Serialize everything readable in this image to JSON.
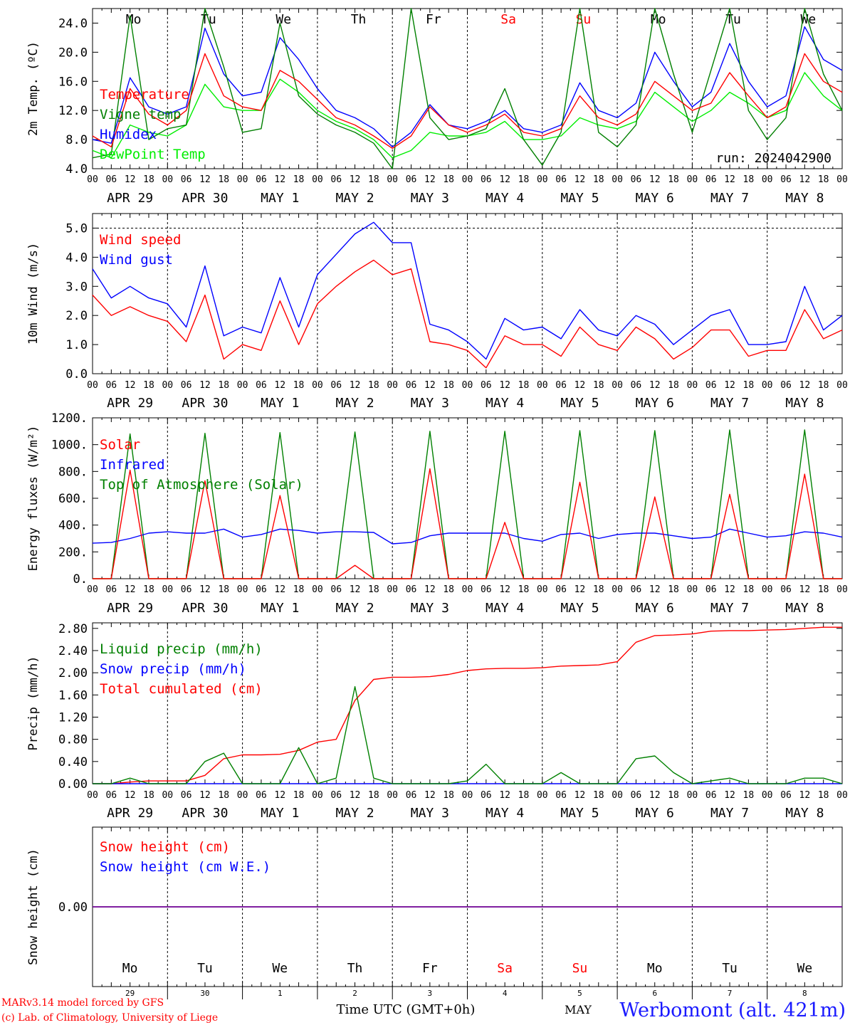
{
  "days": [
    {
      "abbr": "Mo",
      "date": "APR 29",
      "num": "29",
      "weekend": false
    },
    {
      "abbr": "Tu",
      "date": "APR 30",
      "num": "30",
      "weekend": false
    },
    {
      "abbr": "We",
      "date": "MAY  1",
      "num": "1",
      "weekend": false
    },
    {
      "abbr": "Th",
      "date": "MAY  2",
      "num": "2",
      "weekend": false
    },
    {
      "abbr": "Fr",
      "date": "MAY  3",
      "num": "3",
      "weekend": false
    },
    {
      "abbr": "Sa",
      "date": "MAY  4",
      "num": "4",
      "weekend": true
    },
    {
      "abbr": "Su",
      "date": "MAY  5",
      "num": "5",
      "weekend": true
    },
    {
      "abbr": "Mo",
      "date": "MAY  6",
      "num": "6",
      "weekend": false
    },
    {
      "abbr": "Tu",
      "date": "MAY  7",
      "num": "7",
      "weekend": false
    },
    {
      "abbr": "We",
      "date": "MAY  8",
      "num": "8",
      "weekend": false
    }
  ],
  "hour_ticks": [
    "00",
    "06",
    "12",
    "18"
  ],
  "run_label": "run: 2024042900",
  "footer": {
    "credit_line1": "MARv3.14 model forced by GFS",
    "credit_line2": "(c) Lab. of Climatology, University of Liege",
    "xlabel": "Time UTC (GMT+0h)",
    "month_label": "MAY",
    "station": "Werbomont (alt. 421m)"
  },
  "colors": {
    "red": "#ff0000",
    "green": "#008000",
    "blue": "#0000ff",
    "lightgreen": "#00ee00",
    "purple": "#800080"
  },
  "chart_data": [
    {
      "type": "line",
      "ylabel": "2m Temp. (ºC)",
      "ylim": [
        4,
        26
      ],
      "yticks": [
        "24.0",
        "20.0",
        "16.0",
        "12.0",
        "8.0",
        "4.0"
      ],
      "ytick_values": [
        24,
        20,
        16,
        12,
        8,
        4
      ],
      "x_hours": [
        0,
        6,
        12,
        18,
        24,
        30,
        36,
        42,
        48,
        54,
        60,
        66,
        72,
        78,
        84,
        90,
        96,
        102,
        108,
        114,
        120,
        126,
        132,
        138,
        144,
        150,
        156,
        162,
        168,
        174,
        180,
        186,
        192,
        198,
        204,
        210,
        216,
        222,
        228,
        234,
        240
      ],
      "series": [
        {
          "name": "Temperature",
          "color": "#ff0000",
          "values": [
            8.5,
            7.0,
            15.0,
            11.5,
            10.0,
            12.0,
            19.8,
            14.0,
            12.5,
            12.0,
            17.5,
            16.0,
            13.5,
            11.0,
            10.0,
            8.5,
            6.8,
            8.5,
            12.5,
            10.0,
            9.0,
            10.0,
            11.5,
            9.0,
            8.5,
            9.5,
            14.0,
            11.0,
            10.0,
            11.5,
            16.0,
            14.0,
            12.0,
            13.0,
            17.2,
            14.0,
            11.0,
            12.5,
            19.8,
            16.0,
            14.5
          ]
        },
        {
          "name": "Vigne temp",
          "color": "#008000",
          "values": [
            5.5,
            6.0,
            25.0,
            8.0,
            9.5,
            10.0,
            26.0,
            18.0,
            9.0,
            9.5,
            24.0,
            14.0,
            11.5,
            10.0,
            9.0,
            7.5,
            4.0,
            26.0,
            11.0,
            8.0,
            8.5,
            9.5,
            15.0,
            8.0,
            4.5,
            9.0,
            26.0,
            9.0,
            7.0,
            10.0,
            26.0,
            17.0,
            9.0,
            17.5,
            26.0,
            12.0,
            8.0,
            11.0,
            26.0,
            17.0,
            12.0
          ]
        },
        {
          "name": "Humidex",
          "color": "#0000ff",
          "values": [
            8.0,
            7.5,
            16.5,
            12.5,
            11.5,
            12.5,
            23.3,
            17.0,
            14.0,
            14.5,
            22.0,
            19.0,
            15.0,
            12.0,
            11.0,
            9.5,
            7.0,
            9.0,
            12.8,
            10.0,
            9.5,
            10.5,
            12.0,
            9.5,
            9.0,
            10.0,
            15.8,
            12.0,
            11.0,
            13.0,
            20.0,
            16.0,
            12.5,
            14.5,
            21.2,
            16.0,
            12.5,
            14.0,
            23.5,
            19.0,
            17.5
          ]
        },
        {
          "name": "DewPoint Temp",
          "color": "#00ee00",
          "values": [
            6.5,
            5.5,
            10.0,
            9.0,
            8.5,
            10.0,
            15.6,
            12.5,
            12.0,
            12.0,
            16.3,
            14.5,
            12.0,
            10.5,
            9.5,
            8.0,
            5.5,
            6.5,
            9.0,
            8.5,
            8.5,
            9.0,
            10.5,
            8.0,
            8.0,
            8.5,
            11.0,
            10.0,
            9.5,
            10.5,
            14.5,
            12.5,
            10.5,
            12.0,
            14.5,
            13.0,
            11.0,
            12.0,
            17.2,
            14.0,
            12.0
          ]
        }
      ]
    },
    {
      "type": "line",
      "ylabel": "10m Wind (m/s)",
      "ylim": [
        0,
        5.5
      ],
      "yticks": [
        "5.0",
        "4.0",
        "3.0",
        "2.0",
        "1.0",
        "0.0"
      ],
      "ytick_values": [
        5,
        4,
        3,
        2,
        1,
        0
      ],
      "dashed_reference": 5.0,
      "x_hours": [
        0,
        6,
        12,
        18,
        24,
        30,
        36,
        42,
        48,
        54,
        60,
        66,
        72,
        78,
        84,
        90,
        96,
        102,
        108,
        114,
        120,
        126,
        132,
        138,
        144,
        150,
        156,
        162,
        168,
        174,
        180,
        186,
        192,
        198,
        204,
        210,
        216,
        222,
        228,
        234,
        240
      ],
      "series": [
        {
          "name": "Wind speed",
          "color": "#ff0000",
          "values": [
            2.7,
            2.0,
            2.3,
            2.0,
            1.8,
            1.1,
            2.7,
            0.5,
            1.0,
            0.8,
            2.5,
            1.0,
            2.4,
            3.0,
            3.5,
            3.9,
            3.4,
            3.6,
            1.1,
            1.0,
            0.8,
            0.2,
            1.3,
            1.0,
            1.0,
            0.6,
            1.6,
            1.0,
            0.8,
            1.6,
            1.2,
            0.5,
            0.9,
            1.5,
            1.5,
            0.6,
            0.8,
            0.8,
            2.2,
            1.2,
            1.5
          ]
        },
        {
          "name": "Wind gust",
          "color": "#0000ff",
          "values": [
            3.6,
            2.6,
            3.0,
            2.6,
            2.4,
            1.6,
            3.7,
            1.3,
            1.6,
            1.4,
            3.3,
            1.6,
            3.4,
            4.1,
            4.8,
            5.2,
            4.5,
            4.5,
            1.7,
            1.5,
            1.1,
            0.5,
            1.9,
            1.5,
            1.6,
            1.2,
            2.2,
            1.5,
            1.3,
            2.0,
            1.7,
            1.0,
            1.5,
            2.0,
            2.2,
            1.0,
            1.0,
            1.1,
            3.0,
            1.5,
            2.0
          ]
        }
      ]
    },
    {
      "type": "line",
      "ylabel": "Energy fluxes (W/m²)",
      "ylim": [
        0,
        1200
      ],
      "yticks": [
        "1200.",
        "1000.",
        "800.",
        "600.",
        "400.",
        "200.",
        "0."
      ],
      "ytick_values": [
        1200,
        1000,
        800,
        600,
        400,
        200,
        0
      ],
      "x_hours": [
        0,
        6,
        12,
        18,
        24,
        30,
        36,
        42,
        48,
        54,
        60,
        66,
        72,
        78,
        84,
        90,
        96,
        102,
        108,
        114,
        120,
        126,
        132,
        138,
        144,
        150,
        156,
        162,
        168,
        174,
        180,
        186,
        192,
        198,
        204,
        210,
        216,
        222,
        228,
        234,
        240
      ],
      "series": [
        {
          "name": "Solar",
          "color": "#ff0000",
          "values": [
            0,
            0,
            810,
            0,
            0,
            0,
            730,
            0,
            0,
            0,
            620,
            0,
            0,
            0,
            100,
            0,
            0,
            0,
            820,
            0,
            0,
            0,
            420,
            0,
            0,
            0,
            720,
            0,
            0,
            0,
            610,
            0,
            0,
            0,
            630,
            0,
            0,
            0,
            780,
            0,
            0
          ]
        },
        {
          "name": "Infrared",
          "color": "#0000ff",
          "values": [
            265,
            270,
            300,
            340,
            350,
            340,
            340,
            370,
            310,
            330,
            370,
            360,
            340,
            350,
            350,
            345,
            260,
            270,
            320,
            340,
            340,
            340,
            340,
            300,
            280,
            330,
            340,
            300,
            330,
            340,
            340,
            320,
            300,
            310,
            370,
            340,
            310,
            320,
            350,
            340,
            310
          ]
        },
        {
          "name": "Top of Atmosphere (Solar)",
          "color": "#008000",
          "values": [
            0,
            0,
            1080,
            0,
            0,
            0,
            1085,
            0,
            0,
            0,
            1090,
            0,
            0,
            0,
            1095,
            0,
            0,
            0,
            1100,
            0,
            0,
            0,
            1100,
            0,
            0,
            0,
            1105,
            0,
            0,
            0,
            1105,
            0,
            0,
            0,
            1110,
            0,
            0,
            0,
            1110,
            0,
            0
          ]
        }
      ]
    },
    {
      "type": "line",
      "ylabel": "Precip (mm/h)",
      "ylim": [
        0,
        2.9
      ],
      "yticks": [
        "2.80",
        "2.40",
        "2.00",
        "1.60",
        "1.20",
        "0.80",
        "0.40",
        "0.00"
      ],
      "ytick_values": [
        2.8,
        2.4,
        2.0,
        1.6,
        1.2,
        0.8,
        0.4,
        0.0
      ],
      "x_hours": [
        0,
        6,
        12,
        18,
        24,
        30,
        36,
        42,
        48,
        54,
        60,
        66,
        72,
        78,
        84,
        90,
        96,
        102,
        108,
        114,
        120,
        126,
        132,
        138,
        144,
        150,
        156,
        162,
        168,
        174,
        180,
        186,
        192,
        198,
        204,
        210,
        216,
        222,
        228,
        234,
        240
      ],
      "series": [
        {
          "name": "Liquid precip (mm/h)",
          "color": "#008000",
          "values": [
            0,
            0,
            0.1,
            0,
            0,
            0,
            0.4,
            0.55,
            0,
            0,
            0,
            0.65,
            0,
            0.1,
            1.75,
            0.1,
            0,
            0,
            0,
            0,
            0.05,
            0.35,
            0,
            0,
            0,
            0.2,
            0,
            0,
            0,
            0.45,
            0.5,
            0.2,
            0,
            0.05,
            0.1,
            0,
            0,
            0,
            0.1,
            0.1,
            0
          ]
        },
        {
          "name": "Snow precip (mm/h)",
          "color": "#0000ff",
          "values": [
            0,
            0,
            0,
            0,
            0,
            0,
            0,
            0,
            0,
            0,
            0,
            0,
            0,
            0,
            0,
            0,
            0,
            0,
            0,
            0,
            0,
            0,
            0,
            0,
            0,
            0,
            0,
            0,
            0,
            0,
            0,
            0,
            0,
            0,
            0,
            0,
            0,
            0,
            0,
            0,
            0
          ]
        },
        {
          "name": "Total cumulated (cm)",
          "color": "#ff0000",
          "values": [
            0,
            0,
            0.03,
            0.05,
            0.05,
            0.05,
            0.15,
            0.45,
            0.52,
            0.52,
            0.53,
            0.6,
            0.75,
            0.8,
            1.5,
            1.88,
            1.92,
            1.92,
            1.93,
            1.97,
            2.04,
            2.07,
            2.08,
            2.08,
            2.09,
            2.12,
            2.13,
            2.14,
            2.2,
            2.55,
            2.67,
            2.68,
            2.7,
            2.75,
            2.76,
            2.76,
            2.77,
            2.78,
            2.8,
            2.82,
            2.82
          ]
        }
      ]
    },
    {
      "type": "line",
      "ylabel": "Snow height (cm)",
      "ylim": [
        -1,
        1
      ],
      "yticks": [
        "0.00"
      ],
      "ytick_values": [
        0
      ],
      "x_hours": [
        0,
        240
      ],
      "series": [
        {
          "name": "Snow height (cm)",
          "color": "#ff0000",
          "values": [
            0,
            0
          ]
        },
        {
          "name": "Snow height (cm W.E.)",
          "color": "#0000ff",
          "values": [
            0,
            0
          ]
        }
      ]
    }
  ]
}
